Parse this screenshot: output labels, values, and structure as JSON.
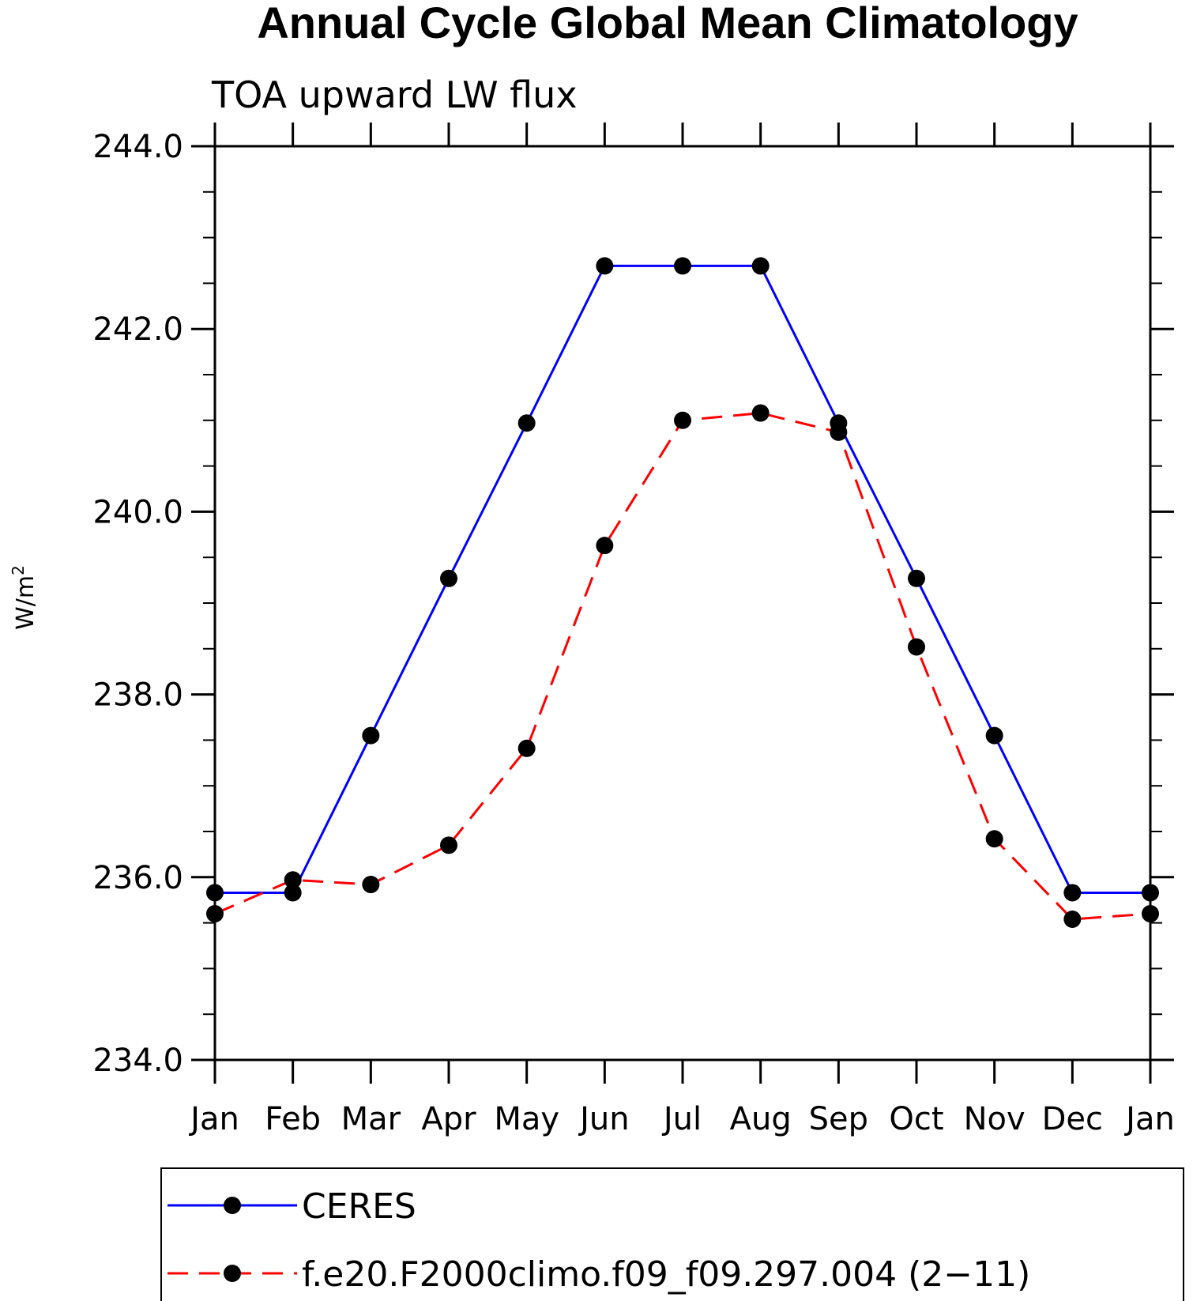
{
  "chart_data": {
    "type": "line",
    "title": "Annual Cycle Global Mean Climatology",
    "subtitle": "TOA upward LW flux",
    "xlabel": "",
    "ylabel": "W/m",
    "ylabel_superscript": "2",
    "categories": [
      "Jan",
      "Feb",
      "Mar",
      "Apr",
      "May",
      "Jun",
      "Jul",
      "Aug",
      "Sep",
      "Oct",
      "Nov",
      "Dec",
      "Jan"
    ],
    "ylim": [
      234.0,
      244.0
    ],
    "yticks": [
      "234.0",
      "236.0",
      "238.0",
      "240.0",
      "242.0",
      "244.0"
    ],
    "grid": false,
    "legend_position": "bottom",
    "series": [
      {
        "name": "CERES",
        "color": "#0000ff",
        "dash": "solid",
        "marker": "filled-circle",
        "values": [
          235.83,
          235.83,
          237.55,
          239.27,
          240.97,
          242.69,
          242.69,
          242.69,
          240.97,
          239.27,
          237.55,
          235.83,
          235.83
        ]
      },
      {
        "name": "f.e20.F2000climo.f09_f09.297.004 (2−11)",
        "color": "#ff0000",
        "dash": "dashed",
        "marker": "filled-circle",
        "values": [
          235.6,
          235.97,
          235.92,
          236.35,
          237.41,
          239.63,
          241.0,
          241.08,
          240.87,
          238.52,
          236.42,
          235.54,
          235.6
        ]
      }
    ]
  }
}
